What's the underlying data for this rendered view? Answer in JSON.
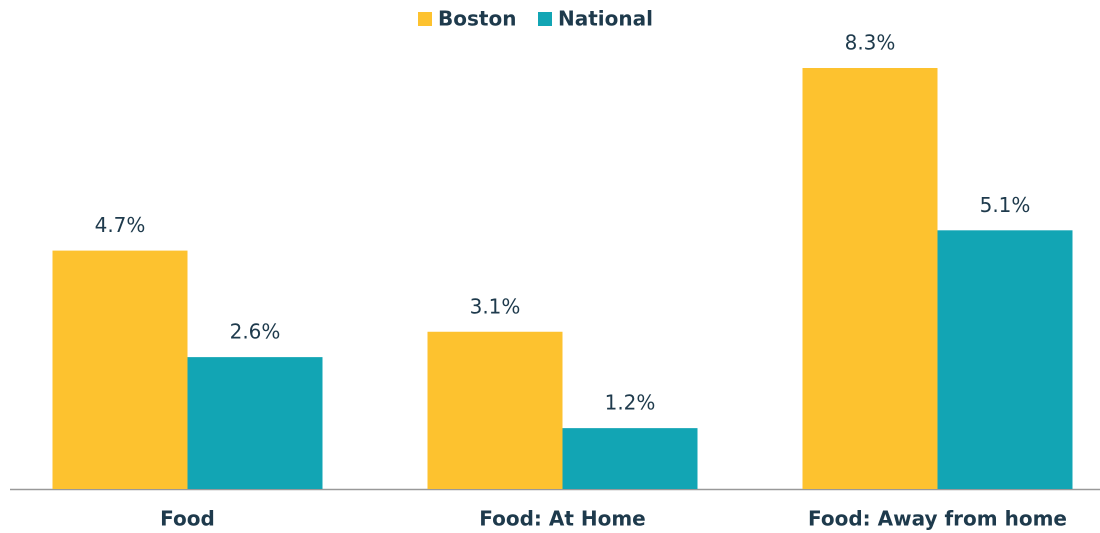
{
  "chart_data": {
    "type": "bar",
    "categories": [
      "Food",
      "Food: At Home",
      "Food: Away from home"
    ],
    "series": [
      {
        "name": "Boston",
        "color": "#fdc22f",
        "values": [
          4.7,
          3.1,
          8.3
        ],
        "value_labels": [
          "4.7%",
          "3.1%",
          "8.3%"
        ]
      },
      {
        "name": "National",
        "color": "#12a5b4",
        "values": [
          2.6,
          1.2,
          5.1
        ],
        "value_labels": [
          "2.6%",
          "1.2%",
          "5.1%"
        ]
      }
    ],
    "legend": "top"
  }
}
